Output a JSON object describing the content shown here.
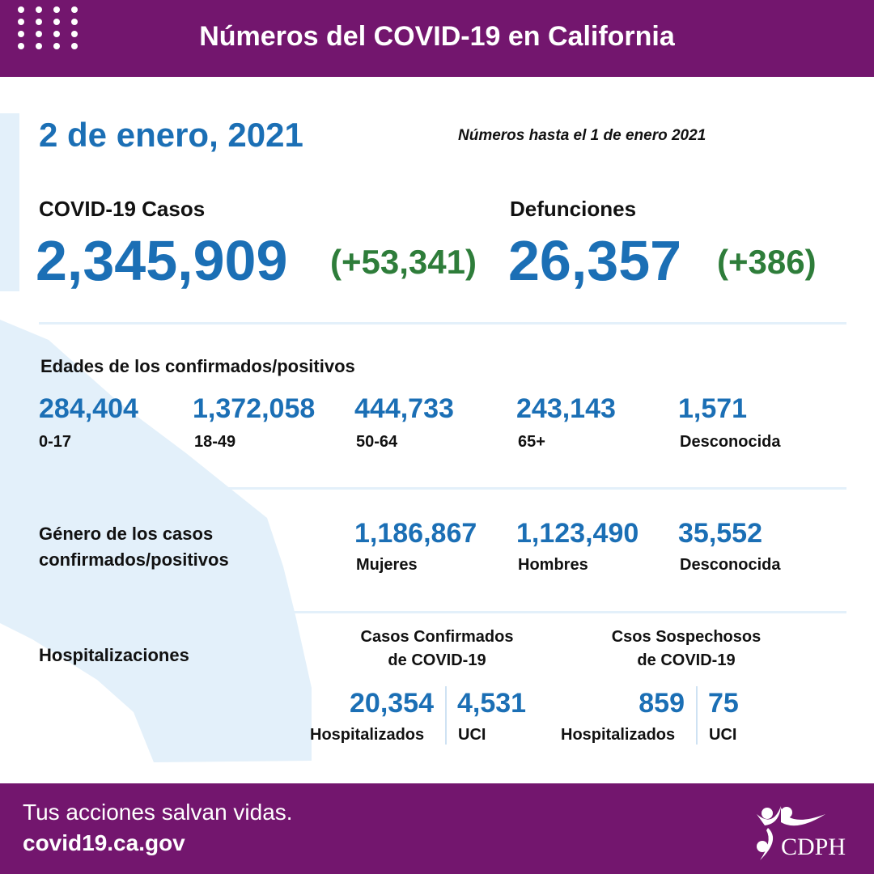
{
  "header": {
    "title": "Números del COVID-19 en California"
  },
  "date": "2 de enero, 2021",
  "as_of": "Números hasta el 1 de enero 2021",
  "cases": {
    "label": "COVID-19 Casos",
    "total": "2,345,909",
    "change": "(+53,341)"
  },
  "deaths": {
    "label": "Defunciones",
    "total": "26,357",
    "change": "(+386)"
  },
  "ages": {
    "label": "Edades de los confirmados/positivos",
    "items": [
      {
        "value": "284,404",
        "label": "0-17"
      },
      {
        "value": "1,372,058",
        "label": "18-49"
      },
      {
        "value": "444,733",
        "label": "50-64"
      },
      {
        "value": "243,143",
        "label": "65+"
      },
      {
        "value": "1,571",
        "label": "Desconocida"
      }
    ]
  },
  "gender": {
    "label_line1": "Género de los casos",
    "label_line2": "confirmados/positivos",
    "items": [
      {
        "value": "1,186,867",
        "label": "Mujeres"
      },
      {
        "value": "1,123,490",
        "label": "Hombres"
      },
      {
        "value": "35,552",
        "label": "Desconocida"
      }
    ]
  },
  "hosp": {
    "label": "Hospitalizaciones",
    "confirmed": {
      "title1": "Casos Confirmados",
      "title2": "de COVID-19",
      "hosp_value": "20,354",
      "hosp_label": "Hospitalizados",
      "icu_value": "4,531",
      "icu_label": "UCI"
    },
    "suspected": {
      "title1": "Csos Sospechosos",
      "title2": "de COVID-19",
      "hosp_value": "859",
      "hosp_label": "Hospitalizados",
      "icu_value": "75",
      "icu_label": "UCI"
    }
  },
  "footer": {
    "tagline": "Tus acciones salvan vidas.",
    "url": "covid19.ca.gov",
    "logo_text": "CDPH"
  },
  "colors": {
    "purple": "#73166e",
    "blue": "#1b6fb5",
    "green": "#2e7d3a",
    "map": "#e3f0fa"
  }
}
